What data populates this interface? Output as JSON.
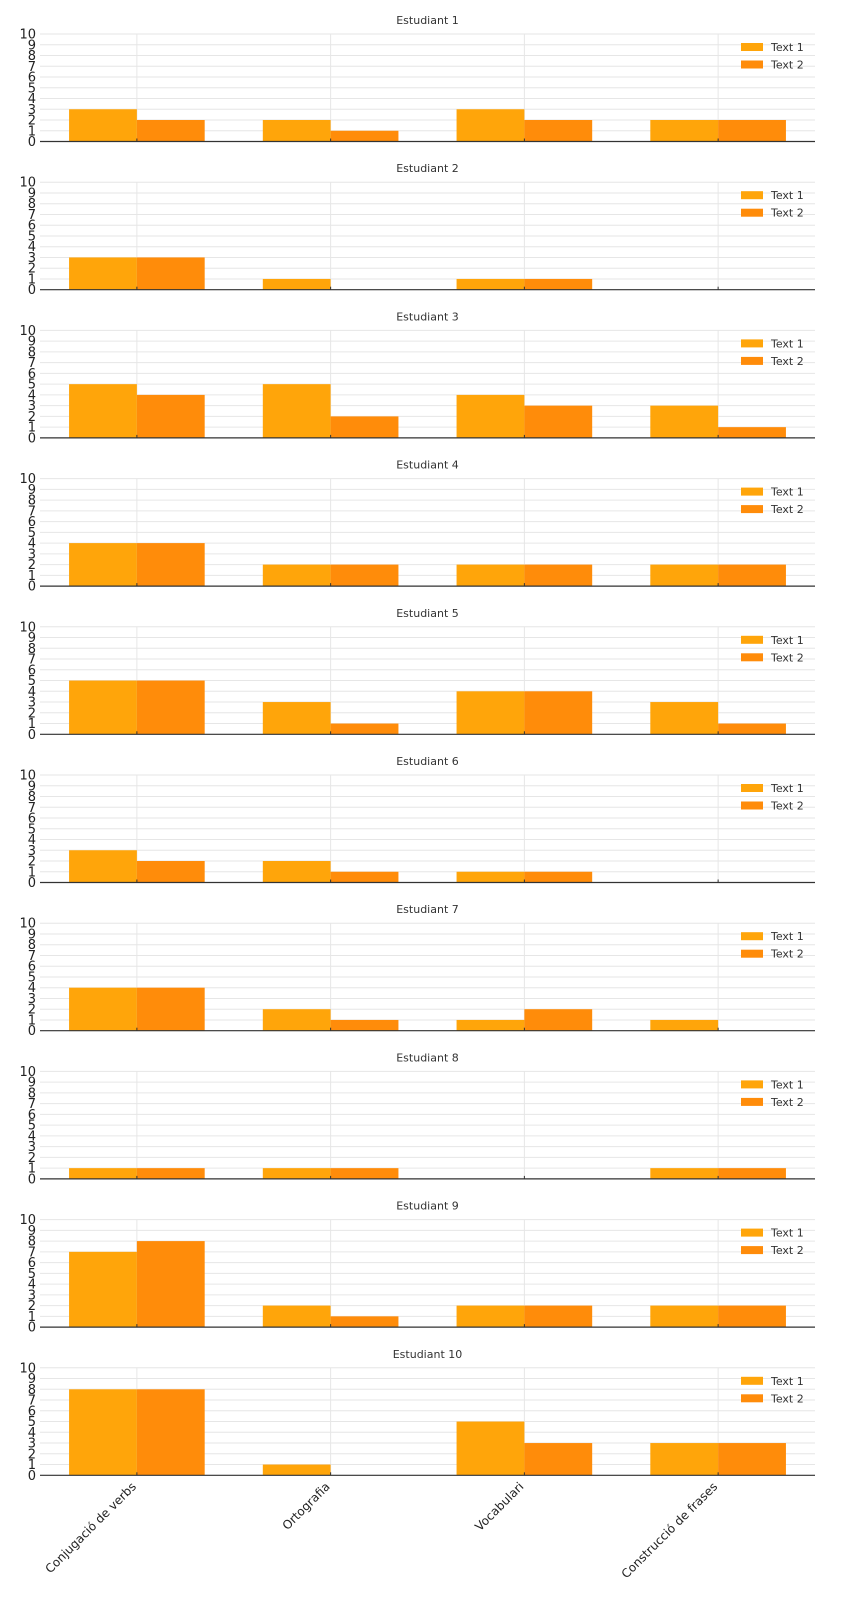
{
  "chart_data": {
    "type": "bar",
    "categories": [
      "Conjugació de verbs",
      "Ortografia",
      "Vocabulari",
      "Construcció de frases"
    ],
    "legend": [
      "Text 1",
      "Text 2"
    ],
    "colors": [
      "#FFA50A",
      "#FF8C0A"
    ],
    "ylim": [
      0,
      10
    ],
    "yticks": [
      "0",
      "1",
      "2",
      "3",
      "4",
      "5",
      "6",
      "7",
      "8",
      "9",
      "10"
    ],
    "legend_position": "top-right",
    "grid": true,
    "panels": [
      {
        "title": "Estudiant 1",
        "series": [
          {
            "name": "Text 1",
            "values": [
              3,
              2,
              3,
              2
            ]
          },
          {
            "name": "Text 2",
            "values": [
              2,
              1,
              2,
              2
            ]
          }
        ]
      },
      {
        "title": "Estudiant 2",
        "series": [
          {
            "name": "Text 1",
            "values": [
              3,
              1,
              1,
              0
            ]
          },
          {
            "name": "Text 2",
            "values": [
              3,
              0,
              1,
              0
            ]
          }
        ]
      },
      {
        "title": "Estudiant 3",
        "series": [
          {
            "name": "Text 1",
            "values": [
              5,
              5,
              4,
              3
            ]
          },
          {
            "name": "Text 2",
            "values": [
              4,
              2,
              3,
              1
            ]
          }
        ]
      },
      {
        "title": "Estudiant 4",
        "series": [
          {
            "name": "Text 1",
            "values": [
              4,
              2,
              2,
              2
            ]
          },
          {
            "name": "Text 2",
            "values": [
              4,
              2,
              2,
              2
            ]
          }
        ]
      },
      {
        "title": "Estudiant 5",
        "series": [
          {
            "name": "Text 1",
            "values": [
              5,
              3,
              4,
              3
            ]
          },
          {
            "name": "Text 2",
            "values": [
              5,
              1,
              4,
              1
            ]
          }
        ]
      },
      {
        "title": "Estudiant 6",
        "series": [
          {
            "name": "Text 1",
            "values": [
              3,
              2,
              1,
              0
            ]
          },
          {
            "name": "Text 2",
            "values": [
              2,
              1,
              1,
              0
            ]
          }
        ]
      },
      {
        "title": "Estudiant 7",
        "series": [
          {
            "name": "Text 1",
            "values": [
              4,
              2,
              1,
              1
            ]
          },
          {
            "name": "Text 2",
            "values": [
              4,
              1,
              2,
              0
            ]
          }
        ]
      },
      {
        "title": "Estudiant 8",
        "series": [
          {
            "name": "Text 1",
            "values": [
              1,
              1,
              0,
              1
            ]
          },
          {
            "name": "Text 2",
            "values": [
              1,
              1,
              0,
              1
            ]
          }
        ]
      },
      {
        "title": "Estudiant 9",
        "series": [
          {
            "name": "Text 1",
            "values": [
              7,
              2,
              2,
              2
            ]
          },
          {
            "name": "Text 2",
            "values": [
              8,
              1,
              2,
              2
            ]
          }
        ]
      },
      {
        "title": "Estudiant 10",
        "series": [
          {
            "name": "Text 1",
            "values": [
              8,
              1,
              5,
              3
            ]
          },
          {
            "name": "Text 2",
            "values": [
              8,
              0,
              3,
              3
            ]
          }
        ]
      }
    ]
  }
}
